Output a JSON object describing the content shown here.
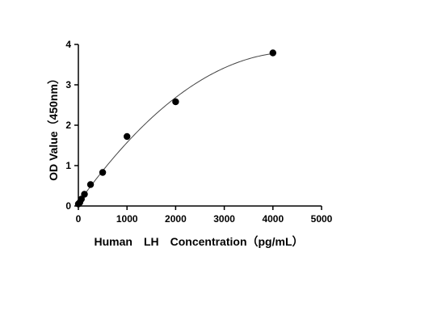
{
  "chart_data": {
    "type": "scatter",
    "title": "",
    "xlabel": "Human　LH　Concentration（pg/mL）",
    "ylabel": "OD Value（450nm）",
    "xlim": [
      0,
      5000
    ],
    "ylim": [
      0,
      4
    ],
    "x_ticks": [
      0,
      1000,
      2000,
      3000,
      4000,
      5000
    ],
    "y_ticks": [
      0,
      1,
      2,
      3,
      4
    ],
    "grid": false,
    "legend": "none",
    "series": [
      {
        "x": [
          0,
          31.25,
          62.5,
          125,
          250,
          500,
          1000,
          2000,
          4000
        ],
        "y": [
          0.05,
          0.09,
          0.17,
          0.29,
          0.53,
          0.83,
          1.72,
          2.58,
          3.79
        ],
        "fit": "curve",
        "marker_color": "#000000",
        "line_color": "#444444"
      }
    ]
  }
}
